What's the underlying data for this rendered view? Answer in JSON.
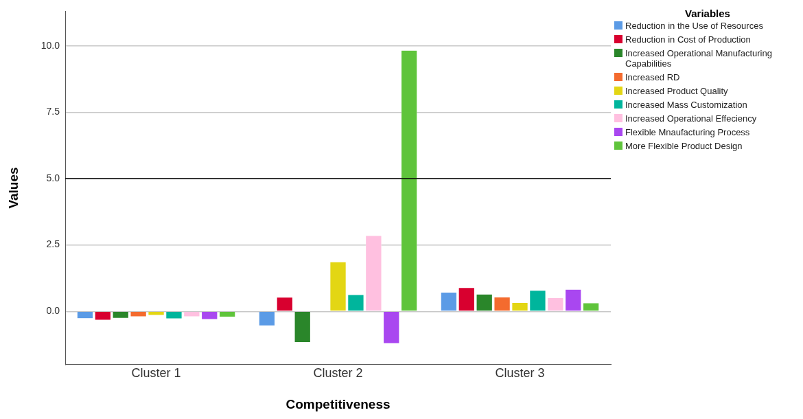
{
  "chart_data": {
    "type": "bar",
    "xlabel": "Competitiveness",
    "ylabel": "Values",
    "legend_title": "Variables",
    "categories": [
      "Cluster 1",
      "Cluster 2",
      "Cluster 3"
    ],
    "series": [
      {
        "name": "Reduction in the Use of Resources",
        "color": "#5b9be6",
        "values": [
          -0.27,
          -0.54,
          0.72
        ]
      },
      {
        "name": "Reduction in Cost of Production",
        "color": "#d8002f",
        "values": [
          -0.33,
          0.53,
          0.89
        ]
      },
      {
        "name": "Increased Operational Manufacturing Capabilities",
        "color": "#2a862a",
        "values": [
          -0.26,
          -1.17,
          0.65
        ]
      },
      {
        "name": "Increased RD",
        "color": "#f46b2e",
        "values": [
          -0.2,
          0.0,
          0.54
        ]
      },
      {
        "name": "Increased Product Quality",
        "color": "#e3d614",
        "values": [
          -0.15,
          1.86,
          0.33
        ]
      },
      {
        "name": "Increased Mass Customization",
        "color": "#00b59c",
        "values": [
          -0.28,
          0.63,
          0.79
        ]
      },
      {
        "name": "Increased Operational Effeciency",
        "color": "#ffc0e0",
        "values": [
          -0.2,
          2.85,
          0.51
        ]
      },
      {
        "name": "Flexible Mnaufacturing Process",
        "color": "#a947f0",
        "values": [
          -0.3,
          -1.21,
          0.83
        ]
      },
      {
        "name": "More Flexible Product Design",
        "color": "#5fc43b",
        "values": [
          -0.21,
          9.83,
          0.32
        ]
      }
    ],
    "ylim": [
      -2,
      11.3
    ],
    "yticks": [
      {
        "value": 0,
        "label": "0.0"
      },
      {
        "value": 2.5,
        "label": "2.5"
      },
      {
        "value": 5,
        "label": "5.0"
      },
      {
        "value": 7.5,
        "label": "7.5"
      },
      {
        "value": 10,
        "label": "10.0"
      }
    ],
    "ref_lines": [
      {
        "axis": "y",
        "value": 5,
        "label": null,
        "color": "#000000"
      }
    ],
    "grid": "y",
    "legend": "right"
  }
}
